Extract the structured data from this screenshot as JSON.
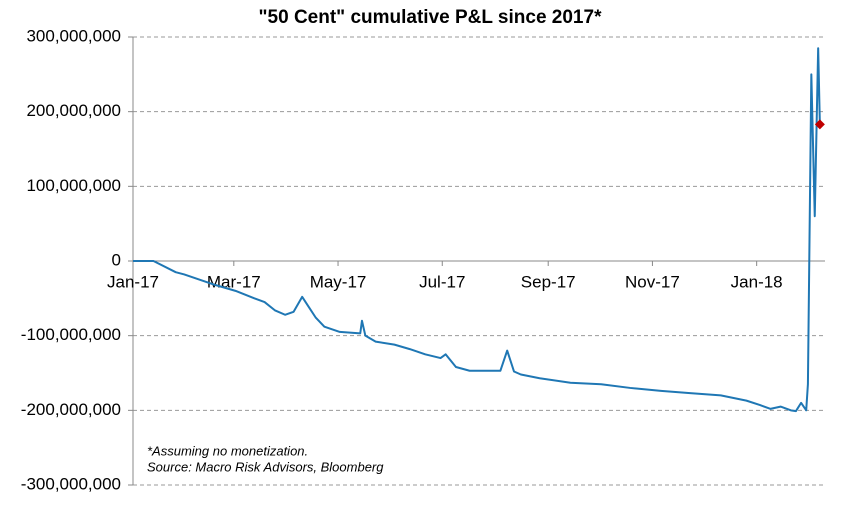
{
  "chart_data": {
    "type": "line",
    "title": "\"50 Cent\" cumulative P&L since 2017*",
    "notes": [
      "*Assuming no monetization.",
      "Source: Macro Risk Advisors, Bloomberg"
    ],
    "x": [
      0,
      12,
      25,
      30,
      39,
      48,
      60,
      71,
      77,
      83,
      89,
      94,
      99,
      103,
      107,
      112,
      121,
      133,
      134,
      136,
      142,
      153,
      162,
      171,
      180,
      183,
      189,
      197,
      215,
      219,
      223,
      227,
      238,
      256,
      274,
      291,
      309,
      326,
      344,
      359,
      367,
      373,
      379,
      385,
      388,
      391,
      394,
      395,
      397,
      399,
      401,
      402
    ],
    "series": [
      {
        "name": "50 Cent",
        "color": "#1f77b4",
        "values": [
          0,
          0,
          -15000000,
          -18000000,
          -25000000,
          -32000000,
          -40000000,
          -50000000,
          -55000000,
          -66000000,
          -72000000,
          -68000000,
          -48000000,
          -62000000,
          -76000000,
          -88000000,
          -95000000,
          -97000000,
          -80000000,
          -100000000,
          -108000000,
          -112000000,
          -118000000,
          -125000000,
          -130000000,
          -125000000,
          -142000000,
          -147000000,
          -147000000,
          -120000000,
          -148000000,
          -152000000,
          -157000000,
          -163000000,
          -165000000,
          -170000000,
          -174000000,
          -177000000,
          -180000000,
          -187000000,
          -193000000,
          -198000000,
          -195000000,
          -200000000,
          -201000000,
          -190000000,
          -200000000,
          -165000000,
          250000000,
          60000000,
          285000000,
          183000000
        ]
      }
    ],
    "highlight": {
      "x": 402,
      "value": 183000000,
      "color": "#c00000"
    },
    "xlim": [
      0,
      405
    ],
    "xticks": [
      {
        "value": 0,
        "label": "Jan-17"
      },
      {
        "value": 59,
        "label": "Mar-17"
      },
      {
        "value": 120,
        "label": "May-17"
      },
      {
        "value": 181,
        "label": "Jul-17"
      },
      {
        "value": 243,
        "label": "Sep-17"
      },
      {
        "value": 304,
        "label": "Nov-17"
      },
      {
        "value": 365,
        "label": "Jan-18"
      }
    ],
    "ylim": [
      -300000000,
      300000000
    ],
    "yticks": [
      {
        "value": -300000000,
        "label": "-300,000,000"
      },
      {
        "value": -200000000,
        "label": "-200,000,000"
      },
      {
        "value": -100000000,
        "label": "-100,000,000"
      },
      0,
      {
        "value": 100000000,
        "label": "100,000,000"
      },
      {
        "value": 200000000,
        "label": "200,000,000"
      },
      {
        "value": 300000000,
        "label": "300,000,000"
      }
    ],
    "grid": true
  }
}
